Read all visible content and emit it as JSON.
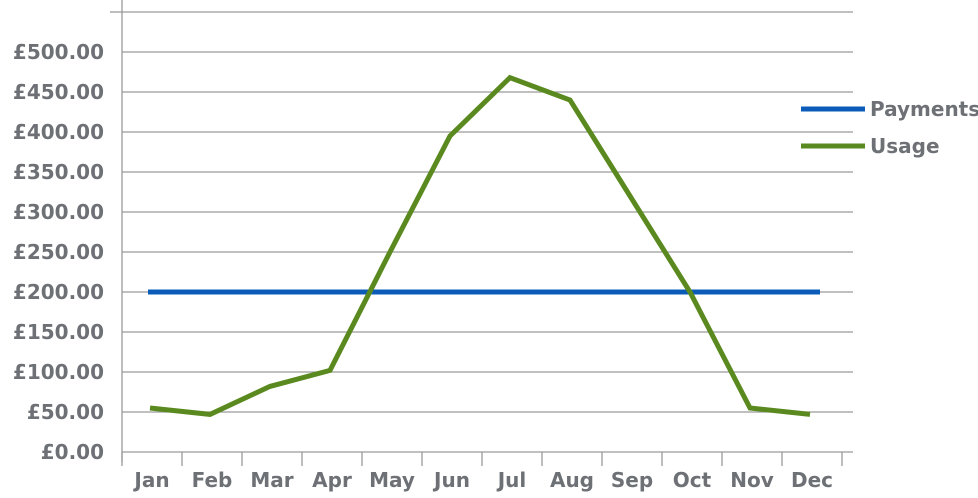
{
  "chart_data": {
    "type": "line",
    "title": "",
    "xlabel": "",
    "ylabel": "",
    "categories": [
      "Jan",
      "Feb",
      "Mar",
      "Apr",
      "May",
      "Jun",
      "Jul",
      "Aug",
      "Sep",
      "Oct",
      "Nov",
      "Dec"
    ],
    "ylim": [
      0,
      550
    ],
    "yticks": [
      "£0.00",
      "£50.00",
      "£100.00",
      "£150.00",
      "£200.00",
      "£250.00",
      "£300.00",
      "£350.00",
      "£400.00",
      "£450.00",
      "£500.00"
    ],
    "grid": true,
    "legend_position": "right",
    "series": [
      {
        "name": "Payments",
        "color": "#0a5cb8",
        "values": [
          200,
          200,
          200,
          200,
          200,
          200,
          200,
          200,
          200,
          200,
          200,
          200
        ]
      },
      {
        "name": "Usage",
        "color": "#5a8a1f",
        "values": [
          55,
          47,
          82,
          102,
          250,
          395,
          468,
          440,
          320,
          200,
          55,
          47
        ]
      }
    ]
  }
}
